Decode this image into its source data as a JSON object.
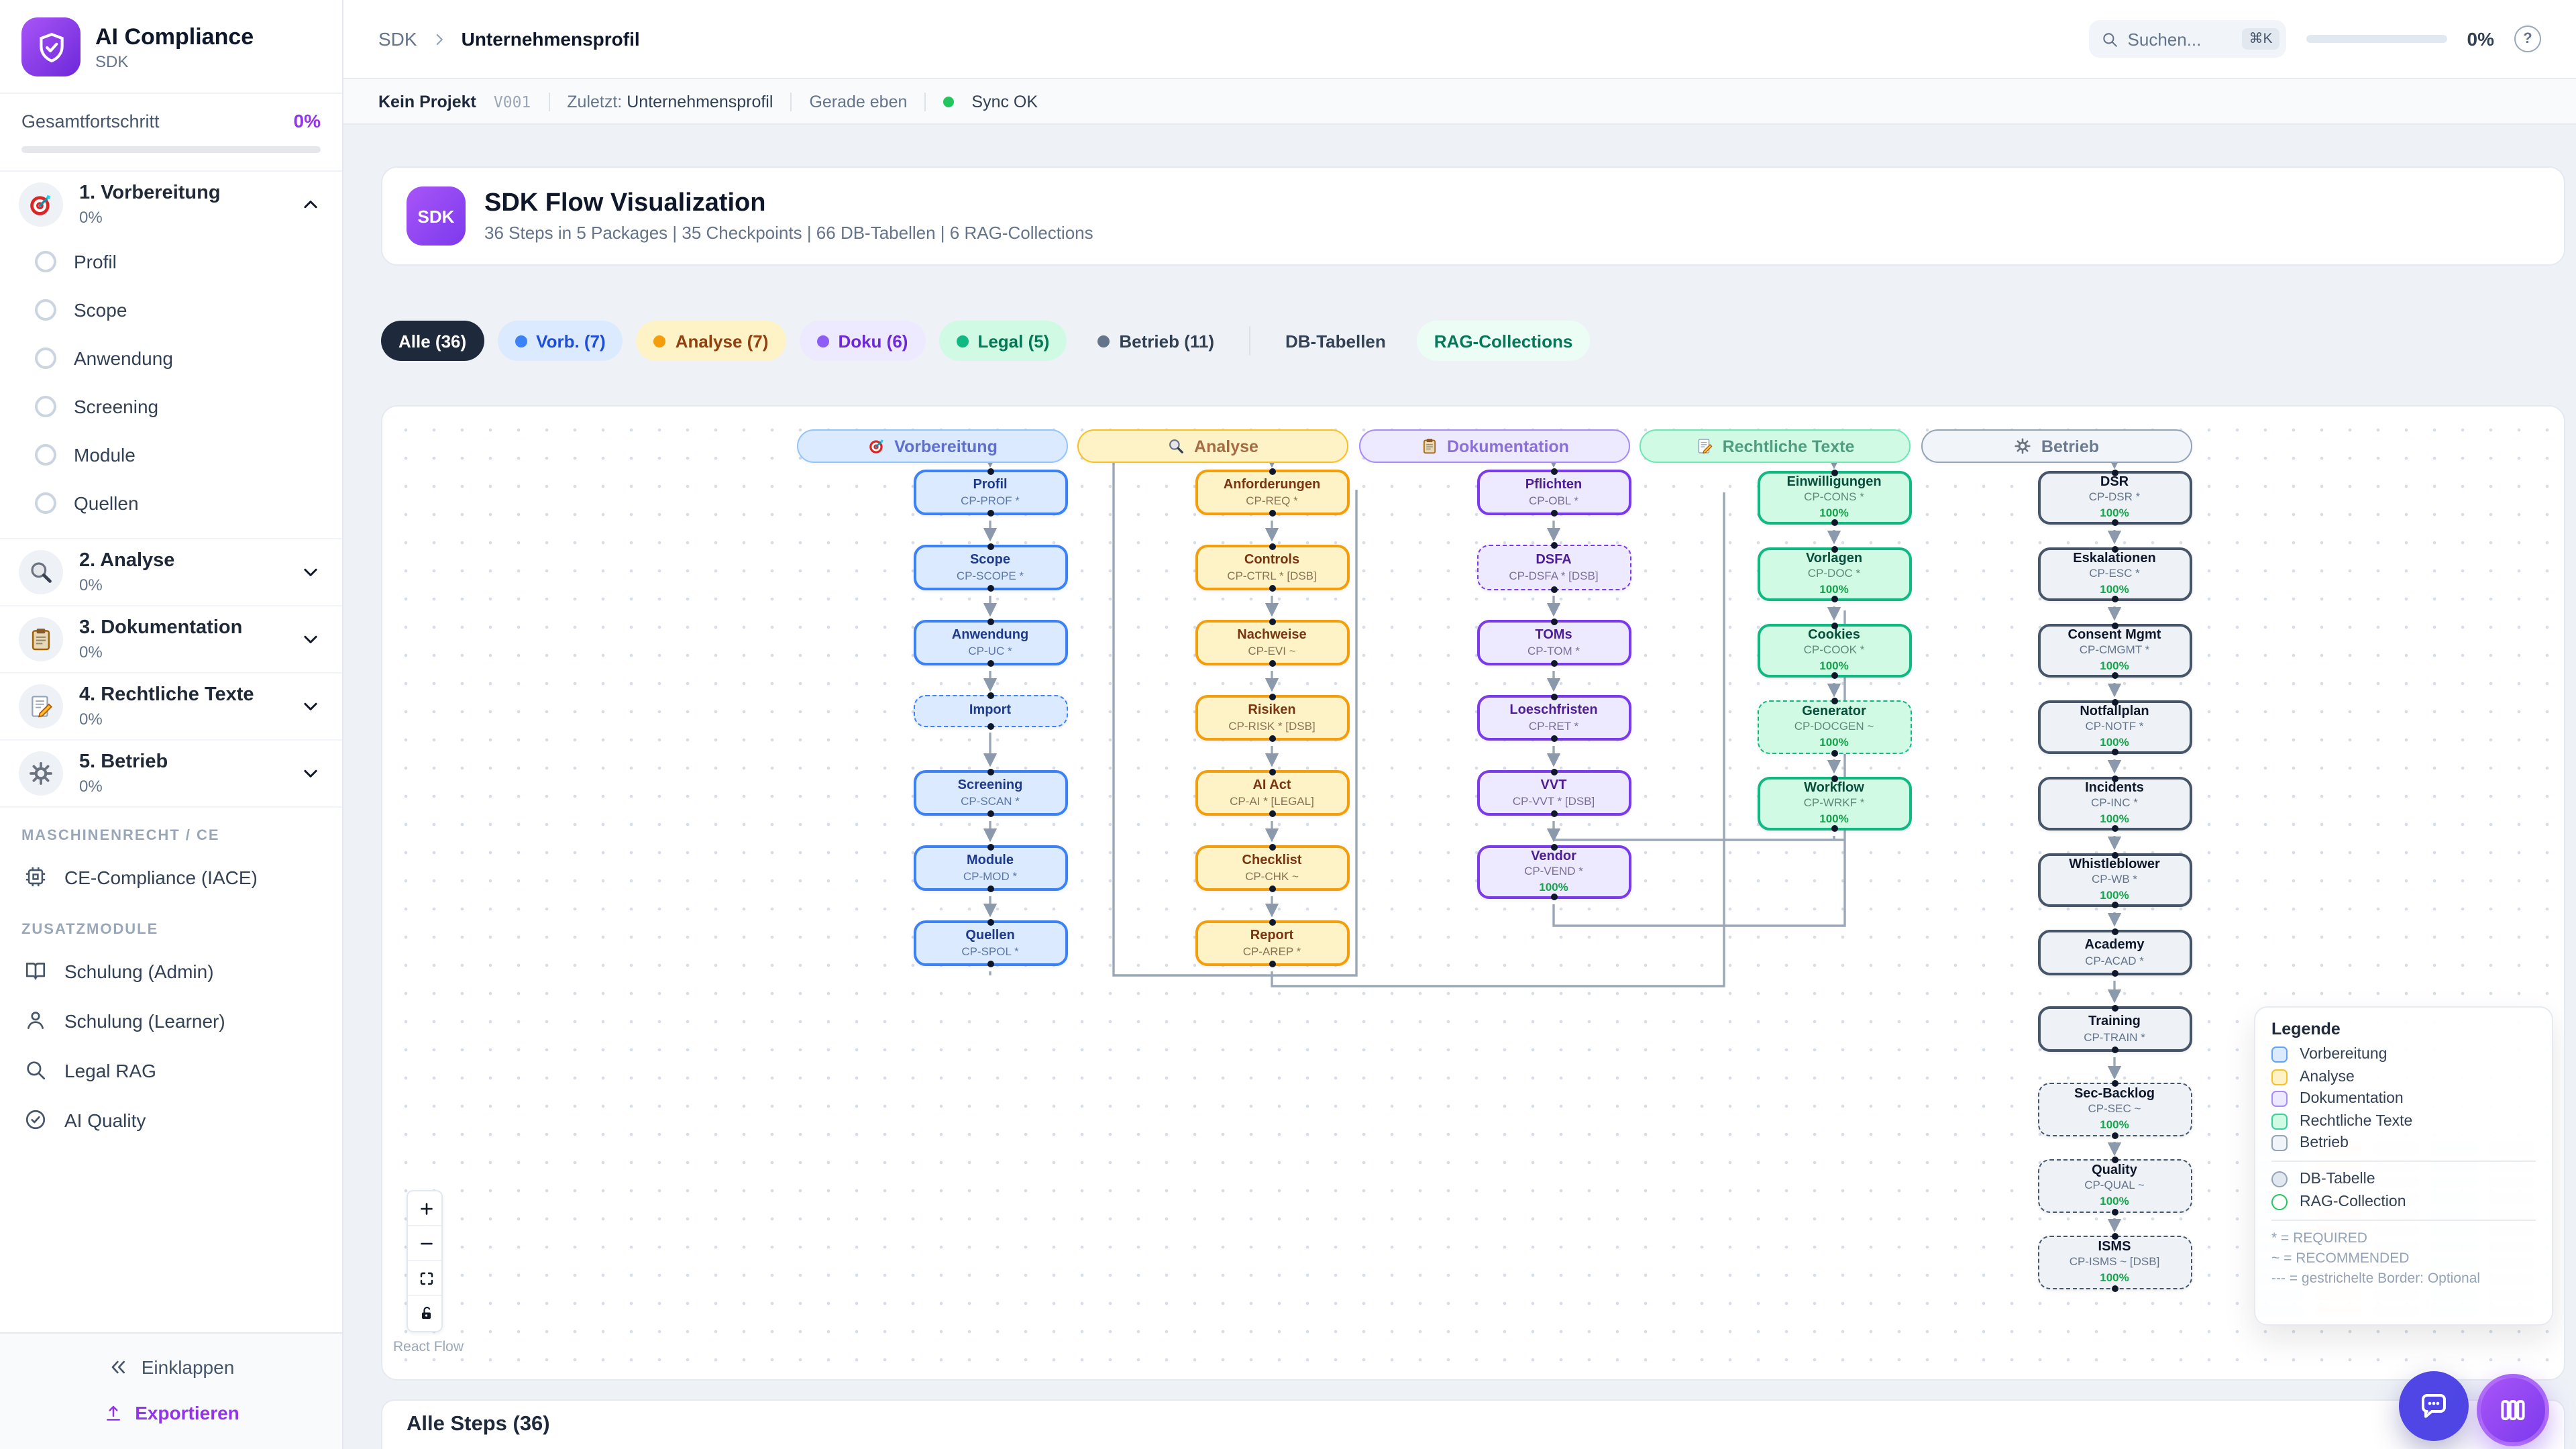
{
  "app": {
    "brand": "AI Compliance",
    "brand_sub": "SDK",
    "accent": "#9333ea"
  },
  "sidebar": {
    "overall": {
      "label": "Gesamtfortschritt",
      "value": "0%"
    },
    "phases": [
      {
        "label": "1. Vorbereitung",
        "progress": "0%",
        "icon": "target",
        "expanded": true,
        "items": [
          "Profil",
          "Scope",
          "Anwendung",
          "Screening",
          "Module",
          "Quellen"
        ]
      },
      {
        "label": "2. Analyse",
        "progress": "0%",
        "icon": "search",
        "expanded": false
      },
      {
        "label": "3. Dokumentation",
        "progress": "0%",
        "icon": "clipboard",
        "expanded": false
      },
      {
        "label": "4. Rechtliche Texte",
        "progress": "0%",
        "icon": "memo",
        "expanded": false
      },
      {
        "label": "5. Betrieb",
        "progress": "0%",
        "icon": "gear",
        "expanded": false
      }
    ],
    "sections": [
      {
        "label": "MASCHINENRECHT / CE",
        "items": [
          {
            "label": "CE-Compliance (IACE)",
            "icon": "cpu"
          }
        ]
      },
      {
        "label": "ZUSATZMODULE",
        "items": [
          {
            "label": "Schulung (Admin)",
            "icon": "book"
          },
          {
            "label": "Schulung (Learner)",
            "icon": "user"
          },
          {
            "label": "Legal RAG",
            "icon": "search-line"
          },
          {
            "label": "AI Quality",
            "icon": "check-circle"
          }
        ]
      }
    ],
    "footer": {
      "collapse": "Einklappen",
      "export": "Exportieren"
    }
  },
  "header": {
    "crumb_root": "SDK",
    "crumb_page": "Unternehmensprofil",
    "search_placeholder": "Suchen...",
    "search_shortcut": "⌘K",
    "progress_value": "0%"
  },
  "statusbar": {
    "project": "Kein Projekt",
    "version": "V001",
    "last_label": "Zuletzt:",
    "last_value": "Unternehmensprofil",
    "time": "Gerade eben",
    "sync": "Sync OK",
    "sync_color": "#22c55e"
  },
  "overview_card": {
    "badge": "SDK",
    "title": "SDK Flow Visualization",
    "subtitle": "36 Steps in 5 Packages | 35 Checkpoints | 66 DB-Tabellen | 6 RAG-Collections"
  },
  "filters": [
    {
      "label": "Alle (36)",
      "active": true,
      "bg": "#1e293b",
      "fg": "#ffffff"
    },
    {
      "label": "Vorb. (7)",
      "dot": "#3b82f6",
      "bg": "#dbeafe",
      "fg": "#1d4ed8"
    },
    {
      "label": "Analyse (7)",
      "dot": "#f59e0b",
      "bg": "#fef3c7",
      "fg": "#92400e"
    },
    {
      "label": "Doku (6)",
      "dot": "#8b5cf6",
      "bg": "#ede9fe",
      "fg": "#6d28d9"
    },
    {
      "label": "Legal (5)",
      "dot": "#10b981",
      "bg": "#d1fae5",
      "fg": "#047857"
    },
    {
      "label": "Betrieb (11)",
      "dot": "#64748b",
      "bg": "#eef2f6",
      "fg": "#334155"
    },
    {
      "divider": true
    },
    {
      "label": "DB-Tabellen",
      "bg": "#eef2f7",
      "fg": "#334155"
    },
    {
      "label": "RAG-Collections",
      "bg": "#ecfdf5",
      "fg": "#047857"
    }
  ],
  "flow": {
    "attribution": "React Flow",
    "progress_color": "#22c55e",
    "columns": [
      {
        "key": "vorb",
        "label": "Vorbereitung",
        "icon": "target",
        "header": {
          "bg": "#dbeafe",
          "border": "#93c5fd",
          "text": "#5f6fce"
        },
        "node_colors": {
          "border": "#3b82f6",
          "bg": "#dbeafe",
          "title": "#1e3a8a",
          "code": "#5c77a8"
        },
        "nodes": [
          {
            "title": "Profil",
            "code": "CP-PROF *"
          },
          {
            "title": "Scope",
            "code": "CP-SCOPE *"
          },
          {
            "title": "Anwendung",
            "code": "CP-UC *"
          },
          {
            "title": "Import",
            "dashed": true
          },
          {
            "title": "Screening",
            "code": "CP-SCAN *"
          },
          {
            "title": "Module",
            "code": "CP-MOD *"
          },
          {
            "title": "Quellen",
            "code": "CP-SPOL *"
          }
        ]
      },
      {
        "key": "analyse",
        "label": "Analyse",
        "icon": "search",
        "header": {
          "bg": "#fef3c7",
          "border": "#fbbf24",
          "text": "#a56b44"
        },
        "node_colors": {
          "border": "#f59e0b",
          "bg": "#fef3c7",
          "title": "#78350f",
          "code": "#8a7355"
        },
        "nodes": [
          {
            "title": "Anforderungen",
            "code": "CP-REQ *"
          },
          {
            "title": "Controls",
            "code": "CP-CTRL * [DSB]"
          },
          {
            "title": "Nachweise",
            "code": "CP-EVI ~"
          },
          {
            "title": "Risiken",
            "code": "CP-RISK * [DSB]"
          },
          {
            "title": "AI Act",
            "code": "CP-AI * [LEGAL]"
          },
          {
            "title": "Checklist",
            "code": "CP-CHK ~"
          },
          {
            "title": "Report",
            "code": "CP-AREP *"
          }
        ]
      },
      {
        "key": "doku",
        "label": "Dokumentation",
        "icon": "clipboard",
        "header": {
          "bg": "#ede9fe",
          "border": "#a78bfa",
          "text": "#8b6fd8"
        },
        "node_colors": {
          "border": "#7c3aed",
          "bg": "#ede9fe",
          "title": "#4c1d95",
          "code": "#7b6f98"
        },
        "nodes": [
          {
            "title": "Pflichten",
            "code": "CP-OBL *"
          },
          {
            "title": "DSFA",
            "code": "CP-DSFA * [DSB]",
            "dashed": true
          },
          {
            "title": "TOMs",
            "code": "CP-TOM *"
          },
          {
            "title": "Loeschfristen",
            "code": "CP-RET *"
          },
          {
            "title": "VVT",
            "code": "CP-VVT * [DSB]"
          },
          {
            "title": "Vendor",
            "code": "CP-VEND *",
            "progress": "100%"
          }
        ]
      },
      {
        "key": "legal",
        "label": "Rechtliche Texte",
        "icon": "memo",
        "header": {
          "bg": "#d1fae5",
          "border": "#6ee7b7",
          "text": "#509e82"
        },
        "node_colors": {
          "border": "#10b981",
          "bg": "#d1fae5",
          "title": "#064e3b",
          "code": "#5f8a79"
        },
        "nodes": [
          {
            "title": "Einwilligungen",
            "code": "CP-CONS *",
            "progress": "100%"
          },
          {
            "title": "Vorlagen",
            "code": "CP-DOC *",
            "progress": "100%"
          },
          {
            "title": "Cookies",
            "code": "CP-COOK *",
            "progress": "100%"
          },
          {
            "title": "Generator",
            "code": "CP-DOCGEN ~",
            "progress": "100%",
            "dashed": true
          },
          {
            "title": "Workflow",
            "code": "CP-WRKF *",
            "progress": "100%"
          }
        ]
      },
      {
        "key": "betrieb",
        "label": "Betrieb",
        "icon": "gear",
        "header": {
          "bg": "#f1f5f9",
          "border": "#94a3b8",
          "text": "#6b7a8f"
        },
        "node_colors": {
          "border": "#475569",
          "bg": "#eef2f7",
          "title": "#0f172a",
          "code": "#64748b"
        },
        "nodes": [
          {
            "title": "DSR",
            "code": "CP-DSR *",
            "progress": "100%"
          },
          {
            "title": "Eskalationen",
            "code": "CP-ESC *",
            "progress": "100%"
          },
          {
            "title": "Consent Mgmt",
            "code": "CP-CMGMT *",
            "progress": "100%"
          },
          {
            "title": "Notfallplan",
            "code": "CP-NOTF *",
            "progress": "100%"
          },
          {
            "title": "Incidents",
            "code": "CP-INC *",
            "progress": "100%"
          },
          {
            "title": "Whistleblower",
            "code": "CP-WB *",
            "progress": "100%"
          },
          {
            "title": "Academy",
            "code": "CP-ACAD *"
          },
          {
            "title": "Training",
            "code": "CP-TRAIN *"
          },
          {
            "title": "Sec-Backlog",
            "code": "CP-SEC ~",
            "progress": "100%",
            "dashed": true
          },
          {
            "title": "Quality",
            "code": "CP-QUAL ~",
            "progress": "100%",
            "dashed": true
          },
          {
            "title": "ISMS",
            "code": "CP-ISMS ~ [DSB]",
            "progress": "100%",
            "dashed": true
          }
        ]
      }
    ]
  },
  "legend": {
    "title": "Legende",
    "families": [
      {
        "label": "Vorbereitung",
        "border": "#60a5fa",
        "fill": "#dbeafe"
      },
      {
        "label": "Analyse",
        "border": "#fbbf24",
        "fill": "#fef3c7"
      },
      {
        "label": "Dokumentation",
        "border": "#a78bfa",
        "fill": "#ede9fe"
      },
      {
        "label": "Rechtliche Texte",
        "border": "#34d399",
        "fill": "#d1fae5"
      },
      {
        "label": "Betrieb",
        "border": "#94a3b8",
        "fill": "#f1f5f9"
      }
    ],
    "shapes": [
      {
        "label": "DB-Tabelle",
        "border": "#94a3b8",
        "fill": "#e2e8f0"
      },
      {
        "label": "RAG-Collection",
        "border": "#22c55e",
        "fill": "#ffffff"
      }
    ],
    "notes": [
      "* = REQUIRED",
      "~ = RECOMMENDED",
      "--- = gestrichelte Border: Optional"
    ]
  },
  "bottom_card": {
    "title": "Alle Steps (36)"
  }
}
